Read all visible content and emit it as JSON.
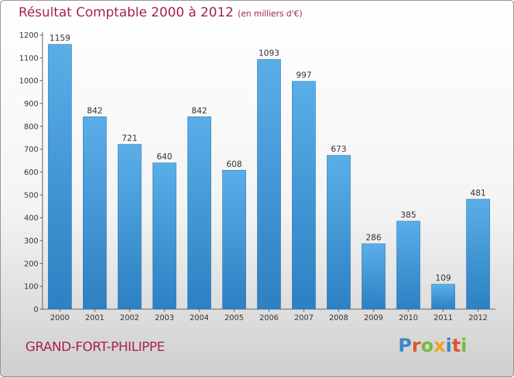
{
  "header": {
    "title": "Résultat Comptable 2000 à 2012",
    "subtitle": "(en milliers d'€)"
  },
  "footer": {
    "city": "GRAND-FORT-PHILIPPE",
    "logo": "Proxiti",
    "logo_colors": [
      "#3c86c9",
      "#e0542c",
      "#7ab83a",
      "#f0a31d",
      "#3c86c9",
      "#e0542c",
      "#7ab83a"
    ]
  },
  "colors": {
    "bar_top": "#5aaee8",
    "bar_bottom": "#2d80c2",
    "title": "#a8234a"
  },
  "chart_data": {
    "type": "bar",
    "title": "Résultat Comptable 2000 à 2012",
    "ylabel": "(en milliers d'€)",
    "xlabel": "",
    "categories": [
      "2000",
      "2001",
      "2002",
      "2003",
      "2004",
      "2005",
      "2006",
      "2007",
      "2008",
      "2009",
      "2010",
      "2011",
      "2012"
    ],
    "values": [
      1159,
      842,
      721,
      640,
      842,
      608,
      1093,
      997,
      673,
      286,
      385,
      109,
      481
    ],
    "ylim": [
      0,
      1200
    ],
    "yticks": [
      0,
      100,
      200,
      300,
      400,
      500,
      600,
      700,
      800,
      900,
      1000,
      1100,
      1200
    ],
    "grid": false
  }
}
